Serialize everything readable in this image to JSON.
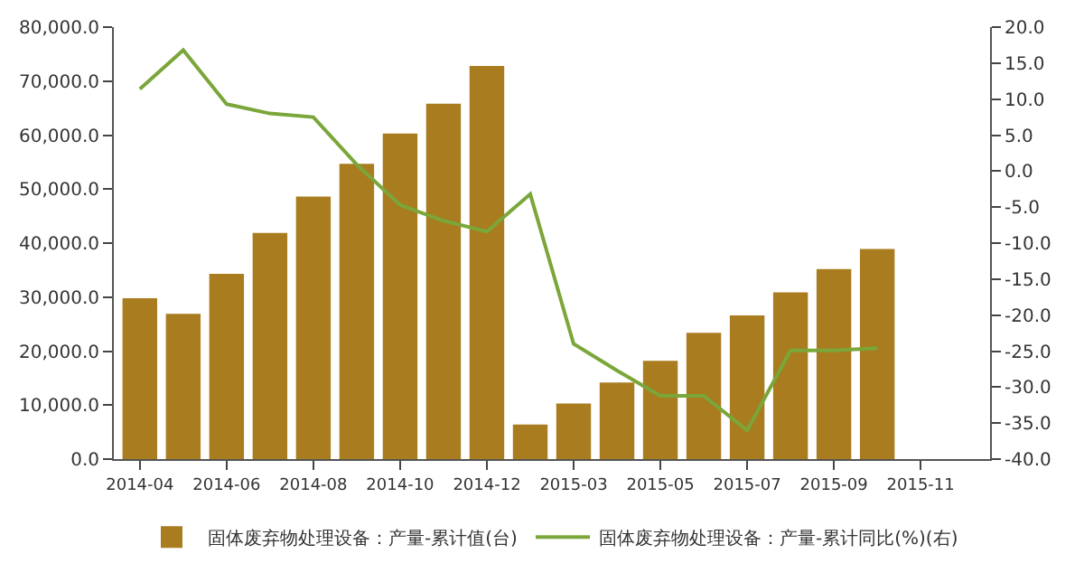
{
  "chart_data": {
    "type": "bar",
    "categories": [
      "2014-04",
      null,
      "2014-06",
      null,
      "2014-08",
      null,
      "2014-10",
      null,
      "2014-12",
      null,
      "2015-03",
      null,
      "2015-05",
      null,
      "2015-07",
      null,
      "2015-09",
      null,
      "2015-11",
      null
    ],
    "series": [
      {
        "name": "固体废弃物处理设备：产量-累计值(台)",
        "color": "#a97c1f",
        "values": [
          29800,
          26900,
          34300,
          41900,
          48600,
          54700,
          60300,
          65800,
          72800,
          6400,
          10300,
          14200,
          18200,
          23400,
          26600,
          30900,
          35200,
          38900,
          null,
          null
        ]
      },
      {
        "name": "固体废弃物处理设备：产量-累计同比(%)(右)",
        "type": "line",
        "axis": "y2",
        "color": "#7aa63a",
        "values": [
          11.4,
          16.8,
          9.3,
          8.0,
          7.5,
          0.9,
          -4.7,
          -6.9,
          -8.4,
          -3.2,
          -24.0,
          -27.7,
          -31.2,
          -31.2,
          -36.0,
          -24.9,
          -24.9,
          -24.6,
          null,
          null
        ]
      }
    ],
    "ylim": [
      0,
      80000
    ],
    "yticks": [
      {
        "value": 0,
        "label": "0.0"
      },
      {
        "value": 10000,
        "label": "10,000.0"
      },
      {
        "value": 20000,
        "label": "20,000.0"
      },
      {
        "value": 30000,
        "label": "30,000.0"
      },
      {
        "value": 40000,
        "label": "40,000.0"
      },
      {
        "value": 50000,
        "label": "50,000.0"
      },
      {
        "value": 60000,
        "label": "60,000.0"
      },
      {
        "value": 70000,
        "label": "70,000.0"
      },
      {
        "value": 80000,
        "label": "80,000.0"
      }
    ],
    "y2lim": [
      -40,
      20
    ],
    "y2ticks": [
      {
        "value": -40,
        "label": "-40.0"
      },
      {
        "value": -35,
        "label": "-35.0"
      },
      {
        "value": -30,
        "label": "-30.0"
      },
      {
        "value": -25,
        "label": "-25.0"
      },
      {
        "value": -20,
        "label": "-20.0"
      },
      {
        "value": -15,
        "label": "-15.0"
      },
      {
        "value": -10,
        "label": "-10.0"
      },
      {
        "value": -5,
        "label": "-5.0"
      },
      {
        "value": 0,
        "label": "0.0"
      },
      {
        "value": 5,
        "label": "5.0"
      },
      {
        "value": 10,
        "label": "10.0"
      },
      {
        "value": 15,
        "label": "15.0"
      },
      {
        "value": 20,
        "label": "20.0"
      }
    ],
    "legend": "bottom",
    "marker": "none",
    "line_style": "solid"
  }
}
